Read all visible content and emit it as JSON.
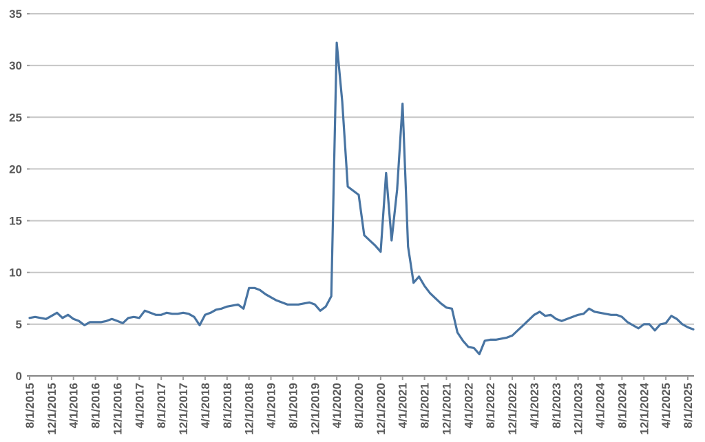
{
  "page": {
    "background": "#FFFFFF"
  },
  "chart_data": {
    "type": "line",
    "title": "",
    "xlabel": "",
    "ylabel": "",
    "legend": "none",
    "grid": "horizontal",
    "ylim": [
      0,
      35
    ],
    "ytick_step": 5,
    "y_tick_labels": [
      "0",
      "5",
      "10",
      "15",
      "20",
      "25",
      "30",
      "35"
    ],
    "x_tick_every": 4,
    "x_tick_labels": [
      "8/1/2015",
      "12/1/2015",
      "4/1/2016",
      "8/1/2016",
      "12/1/2016",
      "4/1/2017",
      "8/1/2017",
      "12/1/2017",
      "4/1/2018",
      "8/1/2018",
      "12/1/2018",
      "4/1/2019",
      "8/1/2019",
      "12/1/2019",
      "4/1/2020",
      "8/1/2020",
      "12/1/2020",
      "4/1/2021",
      "8/1/2021",
      "12/1/2021",
      "4/1/2022",
      "8/1/2022",
      "12/1/2022",
      "4/1/2023",
      "8/1/2023",
      "12/1/2023",
      "4/1/2024",
      "8/1/2024",
      "12/1/2024",
      "4/1/2025",
      "8/1/2025"
    ],
    "line_color": "#4874A2",
    "gridline_color": "#C6C6C6",
    "axis_color": "#848484",
    "tick_color": "#9B9B9B",
    "label_color": "#595959",
    "dates": [
      "8/1/2015",
      "9/1/2015",
      "10/1/2015",
      "11/1/2015",
      "12/1/2015",
      "1/1/2016",
      "2/1/2016",
      "3/1/2016",
      "4/1/2016",
      "5/1/2016",
      "6/1/2016",
      "7/1/2016",
      "8/1/2016",
      "9/1/2016",
      "10/1/2016",
      "11/1/2016",
      "12/1/2016",
      "1/1/2017",
      "2/1/2017",
      "3/1/2017",
      "4/1/2017",
      "5/1/2017",
      "6/1/2017",
      "7/1/2017",
      "8/1/2017",
      "9/1/2017",
      "10/1/2017",
      "11/1/2017",
      "12/1/2017",
      "1/1/2018",
      "2/1/2018",
      "3/1/2018",
      "4/1/2018",
      "5/1/2018",
      "6/1/2018",
      "7/1/2018",
      "8/1/2018",
      "9/1/2018",
      "10/1/2018",
      "11/1/2018",
      "12/1/2018",
      "1/1/2019",
      "2/1/2019",
      "3/1/2019",
      "4/1/2019",
      "5/1/2019",
      "6/1/2019",
      "7/1/2019",
      "8/1/2019",
      "9/1/2019",
      "10/1/2019",
      "11/1/2019",
      "12/1/2019",
      "1/1/2020",
      "2/1/2020",
      "3/1/2020",
      "4/1/2020",
      "5/1/2020",
      "6/1/2020",
      "7/1/2020",
      "8/1/2020",
      "9/1/2020",
      "10/1/2020",
      "11/1/2020",
      "12/1/2020",
      "1/1/2021",
      "2/1/2021",
      "3/1/2021",
      "4/1/2021",
      "5/1/2021",
      "6/1/2021",
      "7/1/2021",
      "8/1/2021",
      "9/1/2021",
      "10/1/2021",
      "11/1/2021",
      "12/1/2021",
      "1/1/2022",
      "2/1/2022",
      "3/1/2022",
      "4/1/2022",
      "5/1/2022",
      "6/1/2022",
      "7/1/2022",
      "8/1/2022",
      "9/1/2022",
      "10/1/2022",
      "11/1/2022",
      "12/1/2022",
      "1/1/2023",
      "2/1/2023",
      "3/1/2023",
      "4/1/2023",
      "5/1/2023",
      "6/1/2023",
      "7/1/2023",
      "8/1/2023",
      "9/1/2023",
      "10/1/2023",
      "11/1/2023",
      "12/1/2023",
      "1/1/2024",
      "2/1/2024",
      "3/1/2024",
      "4/1/2024",
      "5/1/2024",
      "6/1/2024",
      "7/1/2024",
      "8/1/2024",
      "9/1/2024",
      "10/1/2024",
      "11/1/2024",
      "12/1/2024",
      "1/1/2025",
      "2/1/2025",
      "3/1/2025",
      "4/1/2025",
      "5/1/2025",
      "6/1/2025",
      "7/1/2025",
      "8/1/2025",
      "9/1/2025"
    ],
    "values": [
      5.6,
      5.7,
      5.6,
      5.5,
      5.8,
      6.1,
      5.6,
      5.9,
      5.5,
      5.3,
      4.9,
      5.2,
      5.2,
      5.2,
      5.3,
      5.5,
      5.3,
      5.1,
      5.6,
      5.7,
      5.6,
      6.3,
      6.1,
      5.9,
      5.9,
      6.1,
      6.0,
      6.0,
      6.1,
      6.0,
      5.7,
      4.9,
      5.9,
      6.1,
      6.4,
      6.5,
      6.7,
      6.8,
      6.9,
      6.5,
      8.5,
      8.5,
      8.3,
      7.9,
      7.6,
      7.3,
      7.1,
      6.9,
      6.9,
      6.9,
      7.0,
      7.1,
      6.9,
      6.3,
      6.7,
      7.7,
      32.2,
      26.5,
      18.3,
      17.9,
      17.5,
      13.6,
      13.1,
      12.6,
      12.0,
      19.6,
      13.1,
      18.0,
      26.3,
      12.5,
      9.0,
      9.6,
      8.7,
      8.0,
      7.5,
      7.0,
      6.6,
      6.5,
      4.2,
      3.4,
      2.8,
      2.7,
      2.1,
      3.4,
      3.5,
      3.5,
      3.6,
      3.7,
      3.9,
      4.4,
      4.9,
      5.4,
      5.9,
      6.2,
      5.8,
      5.9,
      5.5,
      5.3,
      5.5,
      5.7,
      5.9,
      6.0,
      6.5,
      6.2,
      6.1,
      6.0,
      5.9,
      5.9,
      5.7,
      5.2,
      4.9,
      4.6,
      5.0,
      5.0,
      4.4,
      5.0,
      5.1,
      5.8,
      5.5,
      5.0,
      4.7,
      4.5
    ]
  }
}
